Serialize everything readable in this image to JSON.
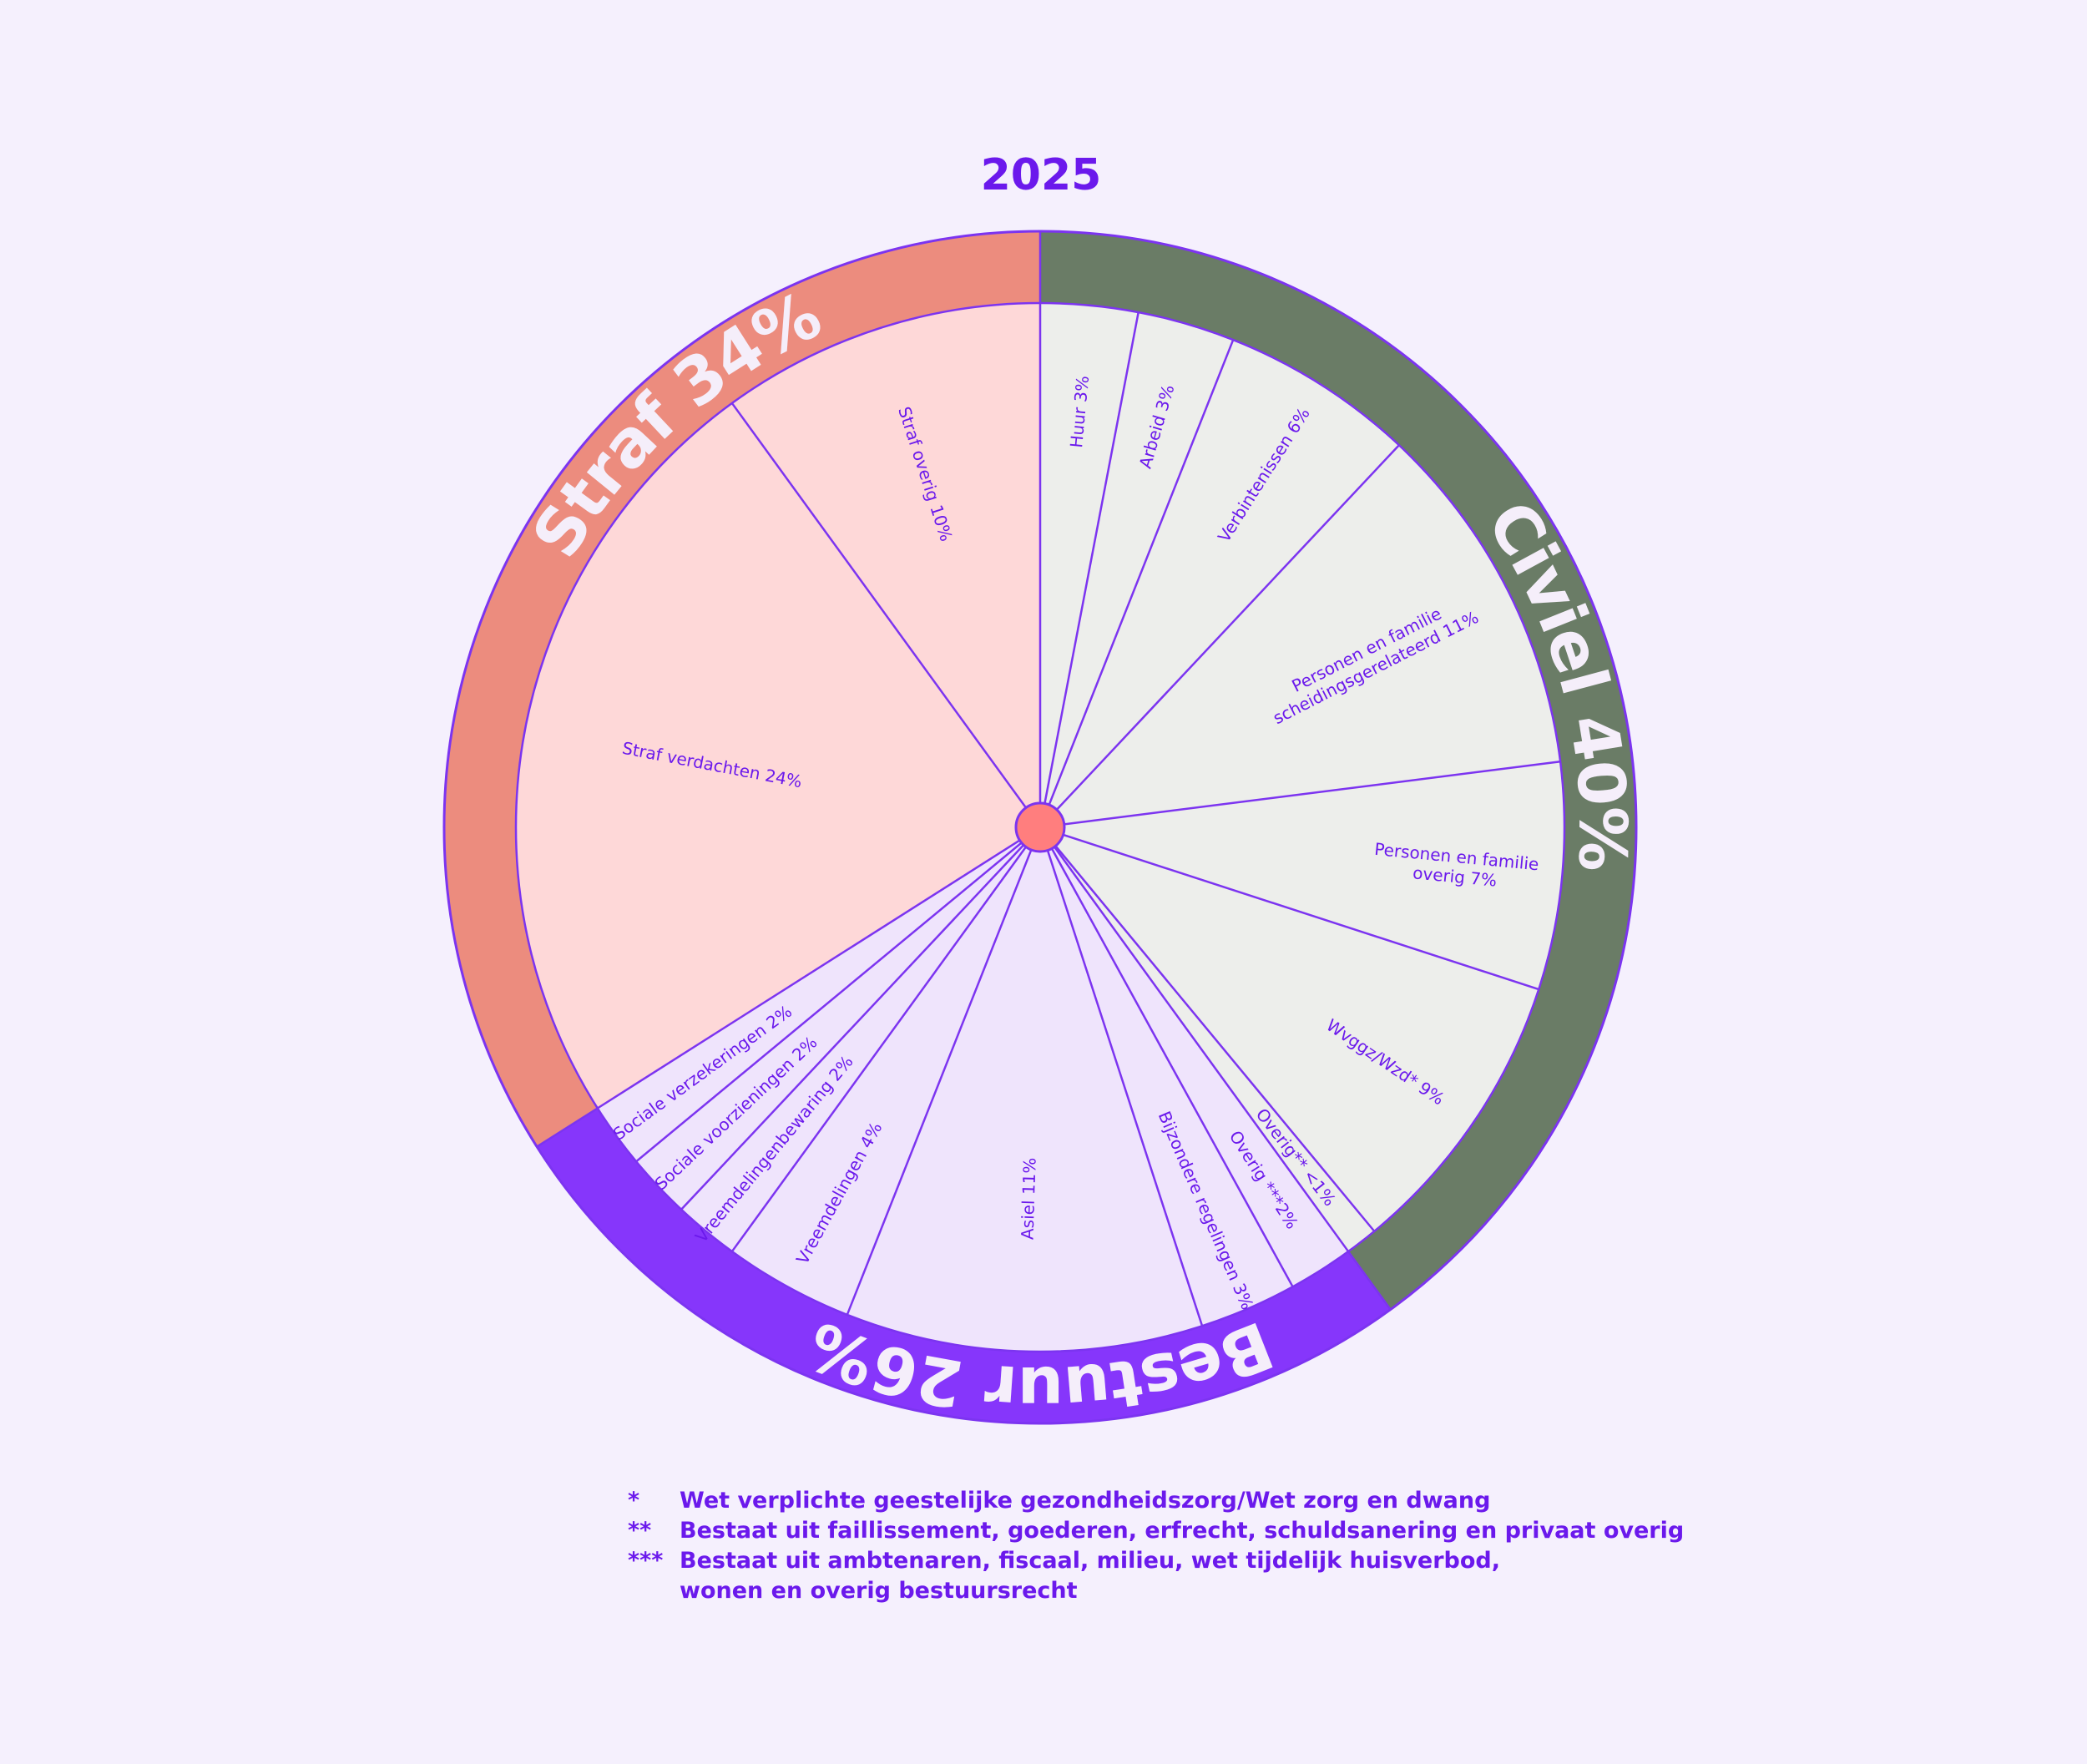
{
  "chart_data": {
    "type": "pie",
    "title": "2025",
    "groups": [
      {
        "name": "Civiel",
        "label": "Civiel 40%",
        "value": 40,
        "color": "#6a7c66",
        "inner_color": "#edeeeb"
      },
      {
        "name": "Bestuur",
        "label": "Bestuur 26%",
        "value": 26,
        "color": "#8636fb",
        "inner_color": "#efe4fc"
      },
      {
        "name": "Straf",
        "label": "Straf 34%",
        "value": 34,
        "color": "#ec8c7e",
        "inner_color": "#fed8d8"
      }
    ],
    "slices": [
      {
        "group": "Civiel",
        "label": "Huur 3%",
        "value": 3
      },
      {
        "group": "Civiel",
        "label": "Arbeid 3%",
        "value": 3
      },
      {
        "group": "Civiel",
        "label": "Verbintenissen 6%",
        "value": 6
      },
      {
        "group": "Civiel",
        "label": "Personen en familie\nscheidingsgerelateerd 11%",
        "value": 11
      },
      {
        "group": "Civiel",
        "label": "Personen en familie\noverig 7%",
        "value": 7
      },
      {
        "group": "Civiel",
        "label": "Wvggz/Wzd* 9%",
        "value": 9
      },
      {
        "group": "Civiel",
        "label": "Overig** <1%",
        "value": 1
      },
      {
        "group": "Bestuur",
        "label": "Overig ***2%",
        "value": 2
      },
      {
        "group": "Bestuur",
        "label": "Bijzondere regelingen 3%",
        "value": 3
      },
      {
        "group": "Bestuur",
        "label": "Asiel 11%",
        "value": 11
      },
      {
        "group": "Bestuur",
        "label": "Vreemdelingen 4%",
        "value": 4
      },
      {
        "group": "Bestuur",
        "label": "Vreemdelingenbewaring 2%",
        "value": 2
      },
      {
        "group": "Bestuur",
        "label": "Sociale voorzieningen 2%",
        "value": 2
      },
      {
        "group": "Bestuur",
        "label": "Sociale verzekeringen 2%",
        "value": 2
      },
      {
        "group": "Straf",
        "label": "Straf verdachten 24%",
        "value": 24
      },
      {
        "group": "Straf",
        "label": "Straf overig 10%",
        "value": 10
      }
    ]
  },
  "colors": {
    "accent": "#6b19ec",
    "line": "#7c34f0",
    "center_dot": "#ff7e7e",
    "background": "#f5f0fd",
    "group_label": "#f5eefa"
  },
  "footnotes": [
    {
      "mark": "*",
      "text": "Wet verplichte geestelijke gezondheidszorg/Wet zorg en dwang"
    },
    {
      "mark": "**",
      "text": "Bestaat uit faillissement, goederen, erfrecht, schuldsanering en privaat overig"
    },
    {
      "mark": "***",
      "text": "Bestaat uit ambtenaren, fiscaal, milieu, wet tijdelijk huisverbod,\nwonen en overig bestuursrecht"
    }
  ]
}
